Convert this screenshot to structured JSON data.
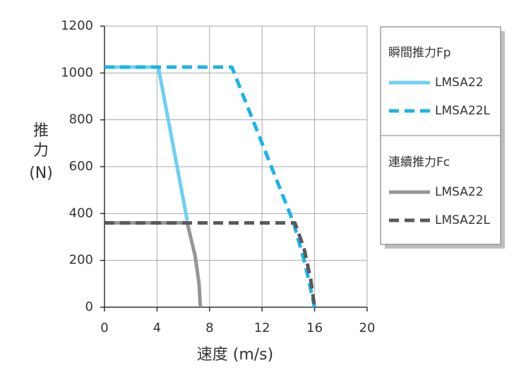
{
  "chart_data": {
    "type": "line",
    "x_label": "速度 (m/s)",
    "y_label": [
      "推",
      "力",
      "(N)"
    ],
    "xlim": [
      0,
      20
    ],
    "xticks": [
      0,
      4,
      8,
      12,
      16,
      20
    ],
    "ylim": [
      0,
      1200
    ],
    "yticks": [
      0,
      200,
      400,
      600,
      800,
      1000,
      1200
    ],
    "grid": true,
    "legend_groups": [
      "瞬間推力Fp",
      "連續推力Fc"
    ],
    "series": [
      {
        "name": "LMSA22",
        "color": "#6dcff6",
        "dash": false,
        "x": [
          0,
          4.1,
          6.3
        ],
        "values": [
          1025,
          1025,
          370
        ]
      },
      {
        "name": "LMSA22L",
        "color": "#1bb4e8",
        "dash": true,
        "x": [
          0,
          9.7,
          14.4,
          15.3,
          16
        ],
        "values": [
          1025,
          1025,
          360,
          180,
          0
        ]
      },
      {
        "name": "LMSA22",
        "color": "#939598",
        "dash": false,
        "x": [
          0,
          6.3,
          6.9,
          7.2,
          7.3
        ],
        "values": [
          360,
          360,
          220,
          100,
          0
        ]
      },
      {
        "name": "LMSA22L",
        "color": "#58595b",
        "dash": true,
        "x": [
          0,
          14.5,
          15.2,
          15.7,
          16
        ],
        "values": [
          360,
          360,
          250,
          120,
          0
        ]
      }
    ]
  }
}
